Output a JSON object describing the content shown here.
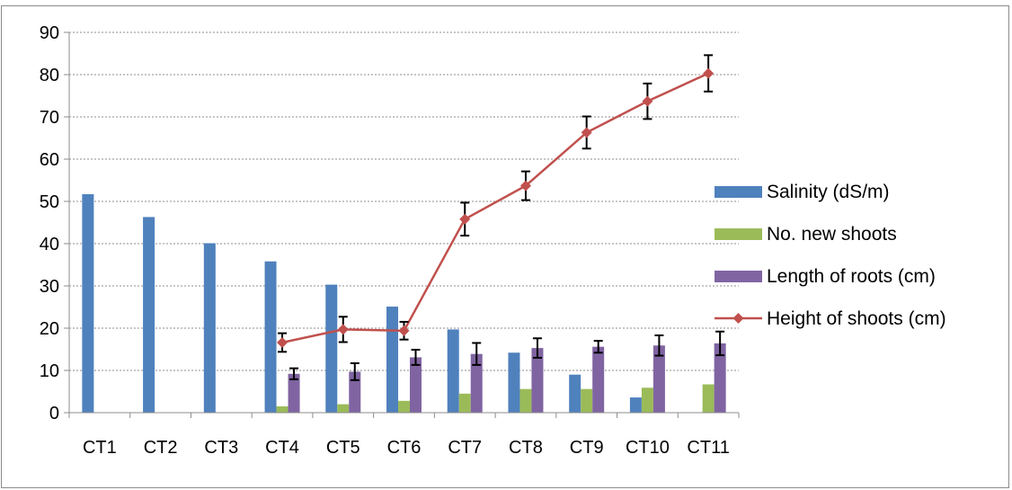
{
  "chart_data": {
    "type": "bar",
    "categories": [
      "CT1",
      "CT2",
      "CT3",
      "CT4",
      "CT5",
      "CT6",
      "CT7",
      "CT8",
      "CT9",
      "CT10",
      "CT11"
    ],
    "ylim": [
      0,
      90
    ],
    "yticks": [
      0,
      10,
      20,
      30,
      40,
      50,
      60,
      70,
      80,
      90
    ],
    "grid": true,
    "legend_position": "right",
    "series": [
      {
        "name": "Salinity (dS/m)",
        "kind": "bar",
        "color": "#4f81bd",
        "values": [
          51.7,
          46.3,
          40.1,
          35.8,
          30.3,
          25.1,
          19.7,
          14.2,
          9.0,
          3.6,
          null
        ]
      },
      {
        "name": "No. new shoots",
        "kind": "bar",
        "color": "#9bbb59",
        "values": [
          null,
          null,
          null,
          1.5,
          2.0,
          2.8,
          4.5,
          5.6,
          5.6,
          5.9,
          6.7
        ]
      },
      {
        "name": "Length of roots (cm)",
        "kind": "bar",
        "color": "#8064a2",
        "values": [
          null,
          null,
          null,
          9.2,
          9.7,
          13.1,
          13.9,
          15.3,
          15.6,
          15.9,
          16.4
        ],
        "errors": [
          null,
          null,
          null,
          1.3,
          2.0,
          1.8,
          2.6,
          2.3,
          1.4,
          2.4,
          2.8
        ]
      },
      {
        "name": "Height of shoots (cm)",
        "kind": "line",
        "color": "#c0504d",
        "values": [
          null,
          null,
          null,
          16.6,
          19.7,
          19.4,
          45.8,
          53.7,
          66.3,
          73.7,
          80.3
        ],
        "errors": [
          null,
          null,
          null,
          2.2,
          3.0,
          2.1,
          3.9,
          3.4,
          3.8,
          4.2,
          4.3
        ]
      }
    ]
  }
}
